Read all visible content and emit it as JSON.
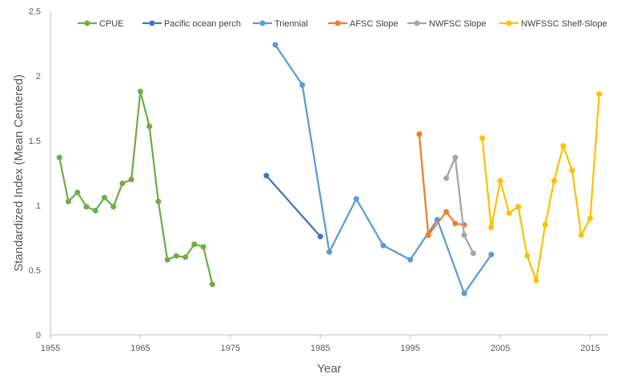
{
  "chart_data": {
    "type": "line",
    "title": "",
    "xlabel": "Year",
    "ylabel": "Standardized Index (Mean Centered)",
    "xlim": [
      1955,
      2017
    ],
    "ylim": [
      0,
      2.5
    ],
    "x_ticks": [
      1955,
      1965,
      1975,
      1985,
      1995,
      2005,
      2015
    ],
    "y_ticks": [
      0,
      0.5,
      1,
      1.5,
      2,
      2.5
    ],
    "y_tick_labels": [
      "0",
      "0.5",
      "1",
      "1.5",
      "2",
      "2.5"
    ],
    "grid": false,
    "legend_position": "top",
    "series": [
      {
        "name": "CPUE",
        "color": "#70AD47",
        "points": [
          [
            1956,
            1.37
          ],
          [
            1957,
            1.03
          ],
          [
            1958,
            1.1
          ],
          [
            1959,
            0.99
          ],
          [
            1960,
            0.96
          ],
          [
            1961,
            1.06
          ],
          [
            1962,
            0.99
          ],
          [
            1963,
            1.17
          ],
          [
            1964,
            1.2
          ],
          [
            1965,
            1.88
          ],
          [
            1966,
            1.61
          ],
          [
            1967,
            1.03
          ],
          [
            1968,
            0.58
          ],
          [
            1969,
            0.61
          ],
          [
            1970,
            0.6
          ],
          [
            1971,
            0.7
          ],
          [
            1972,
            0.68
          ],
          [
            1973,
            0.39
          ]
        ]
      },
      {
        "name": "Pacific ocean perch",
        "color": "#4472C4",
        "points": [
          [
            1979,
            1.23
          ],
          [
            1985,
            0.76
          ]
        ]
      },
      {
        "name": "Triennial",
        "color": "#5B9BD5",
        "points": [
          [
            1980,
            2.24
          ],
          [
            1983,
            1.93
          ],
          [
            1986,
            0.64
          ],
          [
            1989,
            1.05
          ],
          [
            1992,
            0.69
          ],
          [
            1995,
            0.58
          ],
          [
            1998,
            0.89
          ],
          [
            2001,
            0.32
          ],
          [
            2004,
            0.62
          ]
        ]
      },
      {
        "name": "AFSC Slope",
        "color": "#ED7D31",
        "points": [
          [
            1996,
            1.55
          ],
          [
            1997,
            0.77
          ],
          [
            1999,
            0.95
          ],
          [
            2000,
            0.86
          ],
          [
            2001,
            0.85
          ]
        ]
      },
      {
        "name": "NWFSC  Slope",
        "color": "#A5A5A5",
        "points": [
          [
            1999,
            1.21
          ],
          [
            2000,
            1.37
          ],
          [
            2001,
            0.77
          ],
          [
            2002,
            0.63
          ]
        ]
      },
      {
        "name": "NWFSSC Shelf-Slope",
        "color": "#FFC000",
        "points": [
          [
            2003,
            1.52
          ],
          [
            2004,
            0.83
          ],
          [
            2005,
            1.19
          ],
          [
            2006,
            0.94
          ],
          [
            2007,
            0.99
          ],
          [
            2008,
            0.61
          ],
          [
            2009,
            0.42
          ],
          [
            2010,
            0.85
          ],
          [
            2011,
            1.19
          ],
          [
            2012,
            1.46
          ],
          [
            2013,
            1.27
          ],
          [
            2014,
            0.77
          ],
          [
            2015,
            0.9
          ],
          [
            2016,
            1.86
          ]
        ]
      }
    ]
  }
}
